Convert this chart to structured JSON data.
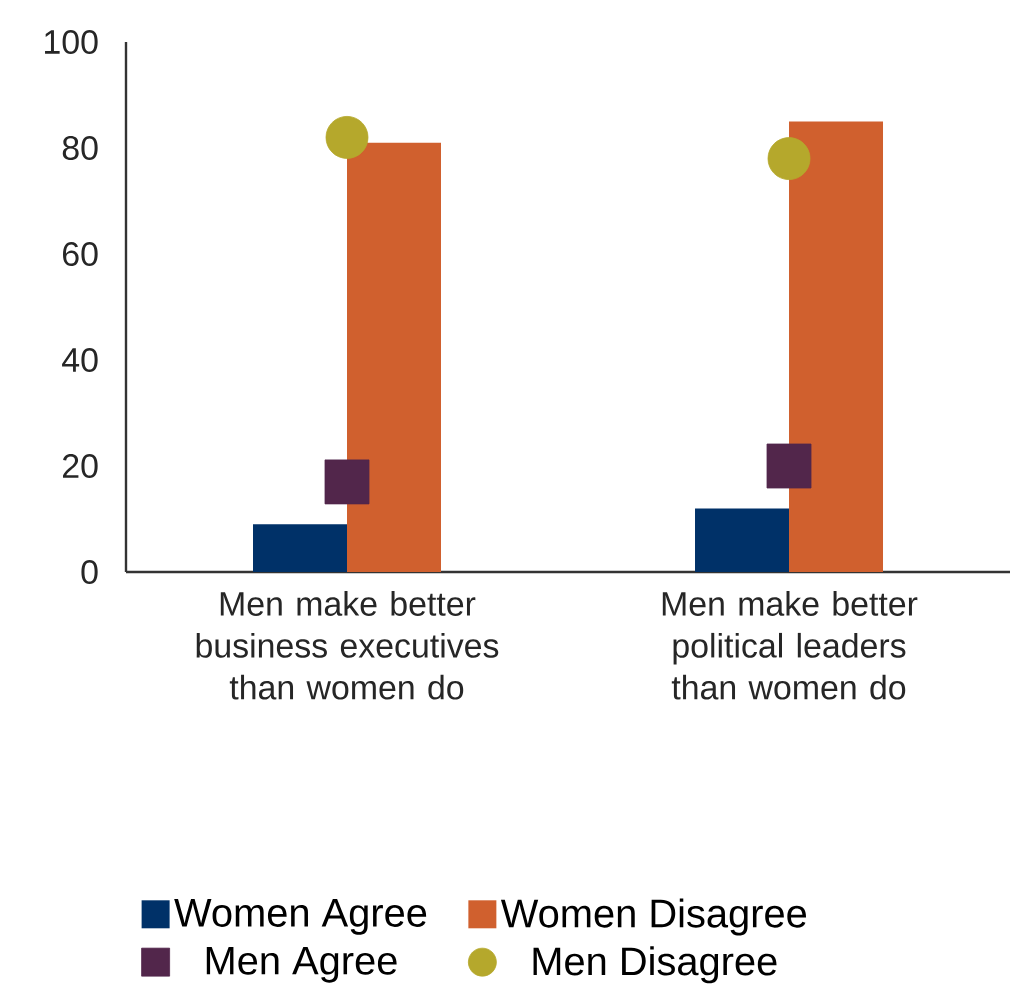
{
  "chart_data": {
    "type": "bar",
    "categories": [
      "Men make better business executives than women do",
      "Men make better political leaders than women do"
    ],
    "series": [
      {
        "name": "Women Agree",
        "color": "#003168",
        "values": [
          9,
          12
        ]
      },
      {
        "name": "Women Disagree",
        "color": "#d0602e",
        "values": [
          81,
          85
        ]
      },
      {
        "name": "Men Agree",
        "type": "scatter",
        "marker": "square",
        "color": "#52264b",
        "values": [
          17,
          20
        ]
      },
      {
        "name": "Men Disagree",
        "type": "scatter",
        "marker": "circle",
        "color": "#b5a82c",
        "values": [
          82,
          78
        ]
      }
    ],
    "ylim": [
      0,
      100
    ],
    "yticks": [
      0,
      20,
      40,
      60,
      80,
      100
    ],
    "legend": "bottom"
  }
}
